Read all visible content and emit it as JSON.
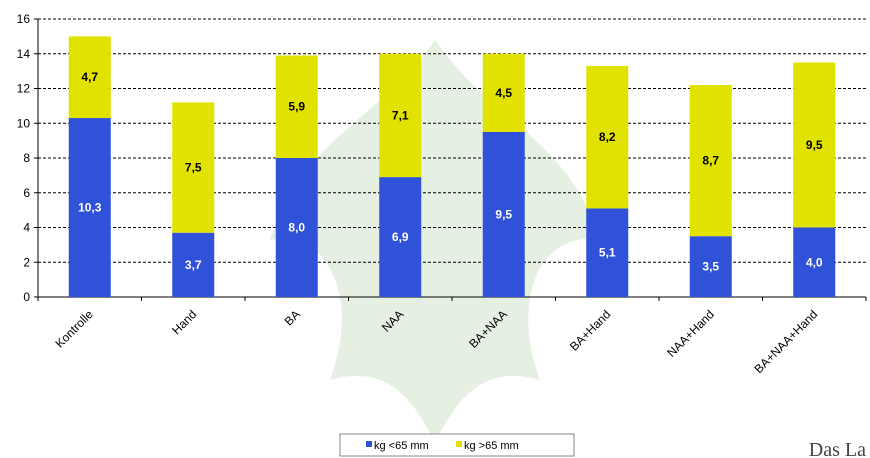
{
  "chart_data": {
    "type": "stacked_bar",
    "categories": [
      "Kontrolle",
      "Hand",
      "BA",
      "NAA",
      "BA+NAA",
      "BA+Hand",
      "NAA+Hand",
      "BA+NAA+Hand"
    ],
    "series": [
      {
        "name": "kg <65 mm",
        "color": "#2f52d8",
        "values": [
          10.3,
          3.7,
          8.0,
          6.9,
          9.5,
          5.1,
          3.5,
          4.0
        ],
        "value_labels": [
          "10,3",
          "3,7",
          "8,0",
          "6,9",
          "9,5",
          "5,1",
          "3,5",
          "4,0"
        ]
      },
      {
        "name": "kg >65 mm",
        "color": "#e2e200",
        "values": [
          4.7,
          7.5,
          5.9,
          7.1,
          4.5,
          8.2,
          8.7,
          9.5
        ],
        "value_labels": [
          "4,7",
          "7,5",
          "5,9",
          "7,1",
          "4,5",
          "8,2",
          "8,7",
          "9,5"
        ]
      }
    ],
    "ylim": [
      0,
      16
    ],
    "yticks": [
      0,
      2,
      4,
      6,
      8,
      10,
      12,
      14,
      16
    ],
    "grid": true,
    "watermark": "Das La"
  }
}
